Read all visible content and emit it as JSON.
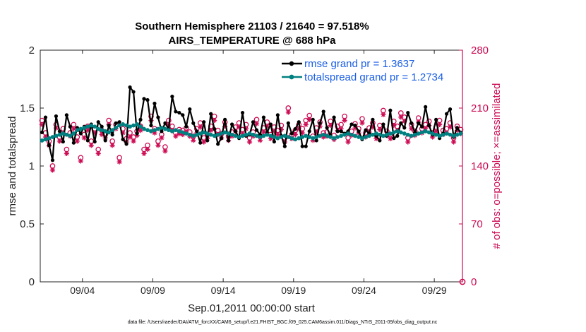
{
  "chart_data": {
    "type": "line",
    "title_line1": "Southern Hemisphere 21103 / 21640 = 97.518%",
    "title_line2": "AIRS_TEMPERATURE @ 688 hPa",
    "xlabel": "Sep.01,2011 00:00:00 start",
    "ylabel_left": "rmse and totalspread",
    "ylabel_right": "# of obs: o=possible; ×=assimilated",
    "x_tick_labels": [
      "09/04",
      "09/09",
      "09/14",
      "09/19",
      "09/24",
      "09/29"
    ],
    "x_tick_days": [
      4,
      9,
      14,
      19,
      24,
      29
    ],
    "xlim_days": [
      1,
      31
    ],
    "ylim_left": [
      0,
      2
    ],
    "y_ticks_left": [
      "0",
      "0.5",
      "1",
      "1.5",
      "2"
    ],
    "ylim_right": [
      0,
      280
    ],
    "y_ticks_right": [
      "0",
      "70",
      "140",
      "210",
      "280"
    ],
    "n_steps": 120,
    "step_days": 0.25,
    "series": [
      {
        "name": "rmse",
        "legend": "rmse grand pr = 1.3637",
        "color": "#000000",
        "marker": "star",
        "values": [
          1.29,
          1.42,
          1.18,
          1.05,
          1.43,
          1.3,
          1.21,
          1.44,
          1.34,
          1.2,
          1.33,
          1.28,
          1.34,
          1.22,
          1.36,
          1.21,
          1.38,
          1.34,
          1.22,
          1.35,
          1.27,
          1.37,
          1.38,
          1.23,
          1.19,
          1.68,
          1.64,
          1.28,
          1.4,
          1.58,
          1.57,
          1.35,
          1.54,
          1.42,
          1.3,
          1.37,
          1.32,
          1.6,
          1.47,
          1.46,
          1.44,
          1.34,
          1.49,
          1.37,
          1.3,
          1.2,
          1.38,
          1.22,
          1.45,
          1.32,
          1.19,
          1.24,
          1.4,
          1.22,
          1.36,
          1.3,
          1.24,
          1.46,
          1.26,
          1.27,
          1.38,
          1.31,
          1.27,
          1.42,
          1.29,
          1.36,
          1.21,
          1.44,
          1.26,
          1.17,
          1.37,
          1.28,
          1.32,
          1.38,
          1.17,
          1.17,
          1.3,
          1.4,
          1.22,
          1.37,
          1.47,
          1.33,
          1.26,
          1.42,
          1.3,
          1.3,
          1.28,
          1.3,
          1.36,
          1.35,
          1.3,
          1.23,
          1.31,
          1.28,
          1.4,
          1.26,
          1.22,
          1.36,
          1.26,
          1.48,
          1.24,
          1.26,
          1.37,
          1.33,
          1.46,
          1.37,
          1.29,
          1.37,
          1.34,
          1.51,
          1.35,
          1.27,
          1.4,
          1.24,
          1.28,
          1.45,
          1.49,
          1.25,
          1.33,
          1.29
        ]
      },
      {
        "name": "totalspread",
        "legend": "totalspread grand pr = 1.2734",
        "color": "#008080",
        "marker": "circle",
        "values": [
          1.22,
          1.23,
          1.24,
          1.25,
          1.26,
          1.27,
          1.28,
          1.27,
          1.26,
          1.28,
          1.31,
          1.32,
          1.33,
          1.34,
          1.35,
          1.34,
          1.32,
          1.31,
          1.3,
          1.29,
          1.31,
          1.33,
          1.35,
          1.36,
          1.35,
          1.34,
          1.35,
          1.36,
          1.34,
          1.32,
          1.31,
          1.3,
          1.31,
          1.32,
          1.33,
          1.32,
          1.31,
          1.3,
          1.31,
          1.3,
          1.29,
          1.28,
          1.27,
          1.26,
          1.27,
          1.28,
          1.29,
          1.28,
          1.27,
          1.26,
          1.27,
          1.28,
          1.29,
          1.28,
          1.27,
          1.26,
          1.25,
          1.26,
          1.27,
          1.28,
          1.27,
          1.26,
          1.25,
          1.26,
          1.27,
          1.26,
          1.25,
          1.24,
          1.25,
          1.26,
          1.25,
          1.24,
          1.23,
          1.24,
          1.25,
          1.26,
          1.25,
          1.24,
          1.25,
          1.26,
          1.27,
          1.26,
          1.25,
          1.24,
          1.25,
          1.26,
          1.27,
          1.28,
          1.27,
          1.26,
          1.25,
          1.24,
          1.25,
          1.26,
          1.27,
          1.28,
          1.27,
          1.26,
          1.27,
          1.28,
          1.29,
          1.3,
          1.29,
          1.28,
          1.27,
          1.26,
          1.27,
          1.28,
          1.29,
          1.3,
          1.29,
          1.28,
          1.27,
          1.26,
          1.27,
          1.28,
          1.27,
          1.26,
          1.27,
          1.28
        ]
      },
      {
        "name": "obs_possible",
        "color": "#cc0a52",
        "marker": "circle-open",
        "axis": "right",
        "values": [
          195,
          180,
          170,
          140,
          190,
          175,
          185,
          160,
          180,
          190,
          175,
          150,
          178,
          188,
          170,
          185,
          160,
          183,
          178,
          195,
          170,
          190,
          150,
          185,
          173,
          180,
          175,
          182,
          188,
          160,
          165,
          200,
          185,
          170,
          178,
          163,
          195,
          188,
          180,
          184,
          183,
          186,
          181,
          176,
          185,
          192,
          174,
          178,
          188,
          200,
          183,
          179,
          193,
          176,
          181,
          187,
          192,
          184,
          190,
          174,
          181,
          196,
          176,
          186,
          193,
          178,
          187,
          183,
          189,
          174,
          210,
          178,
          183,
          190,
          185,
          195,
          201,
          176,
          186,
          193,
          180,
          181,
          194,
          177,
          188,
          190,
          200,
          174,
          182,
          191,
          185,
          197,
          180,
          186,
          192,
          178,
          189,
          207,
          182,
          178,
          194,
          188,
          204,
          199,
          174,
          190,
          182,
          198,
          185,
          190,
          194,
          180,
          187,
          195,
          183,
          185,
          192,
          174,
          188,
          184
        ]
      },
      {
        "name": "obs_assimilated",
        "color": "#cc0a52",
        "marker": "asterisk",
        "axis": "right",
        "values": [
          190,
          175,
          165,
          135,
          186,
          170,
          180,
          155,
          176,
          185,
          170,
          146,
          174,
          183,
          165,
          180,
          155,
          178,
          174,
          190,
          165,
          185,
          145,
          180,
          169,
          175,
          170,
          177,
          183,
          155,
          160,
          195,
          180,
          165,
          174,
          158,
          190,
          183,
          176,
          179,
          178,
          181,
          176,
          171,
          180,
          187,
          169,
          173,
          183,
          195,
          178,
          174,
          188,
          171,
          176,
          182,
          187,
          179,
          185,
          169,
          176,
          191,
          171,
          181,
          188,
          173,
          182,
          178,
          184,
          169,
          205,
          173,
          178,
          185,
          180,
          190,
          196,
          171,
          181,
          188,
          175,
          176,
          189,
          172,
          183,
          185,
          195,
          169,
          177,
          186,
          180,
          192,
          175,
          181,
          187,
          173,
          184,
          202,
          177,
          173,
          189,
          183,
          199,
          194,
          169,
          185,
          177,
          193,
          180,
          185,
          189,
          175,
          182,
          190,
          178,
          180,
          187,
          169,
          183,
          179
        ]
      }
    ]
  },
  "footnote": "data file: /Users/raeder/DAI/ATM_forcXX/CAM6_setup/f.e21.FHIST_BGC.f09_025.CAM6assim.011/Diags_NTrS_2011-09/obs_diag_output.nc"
}
